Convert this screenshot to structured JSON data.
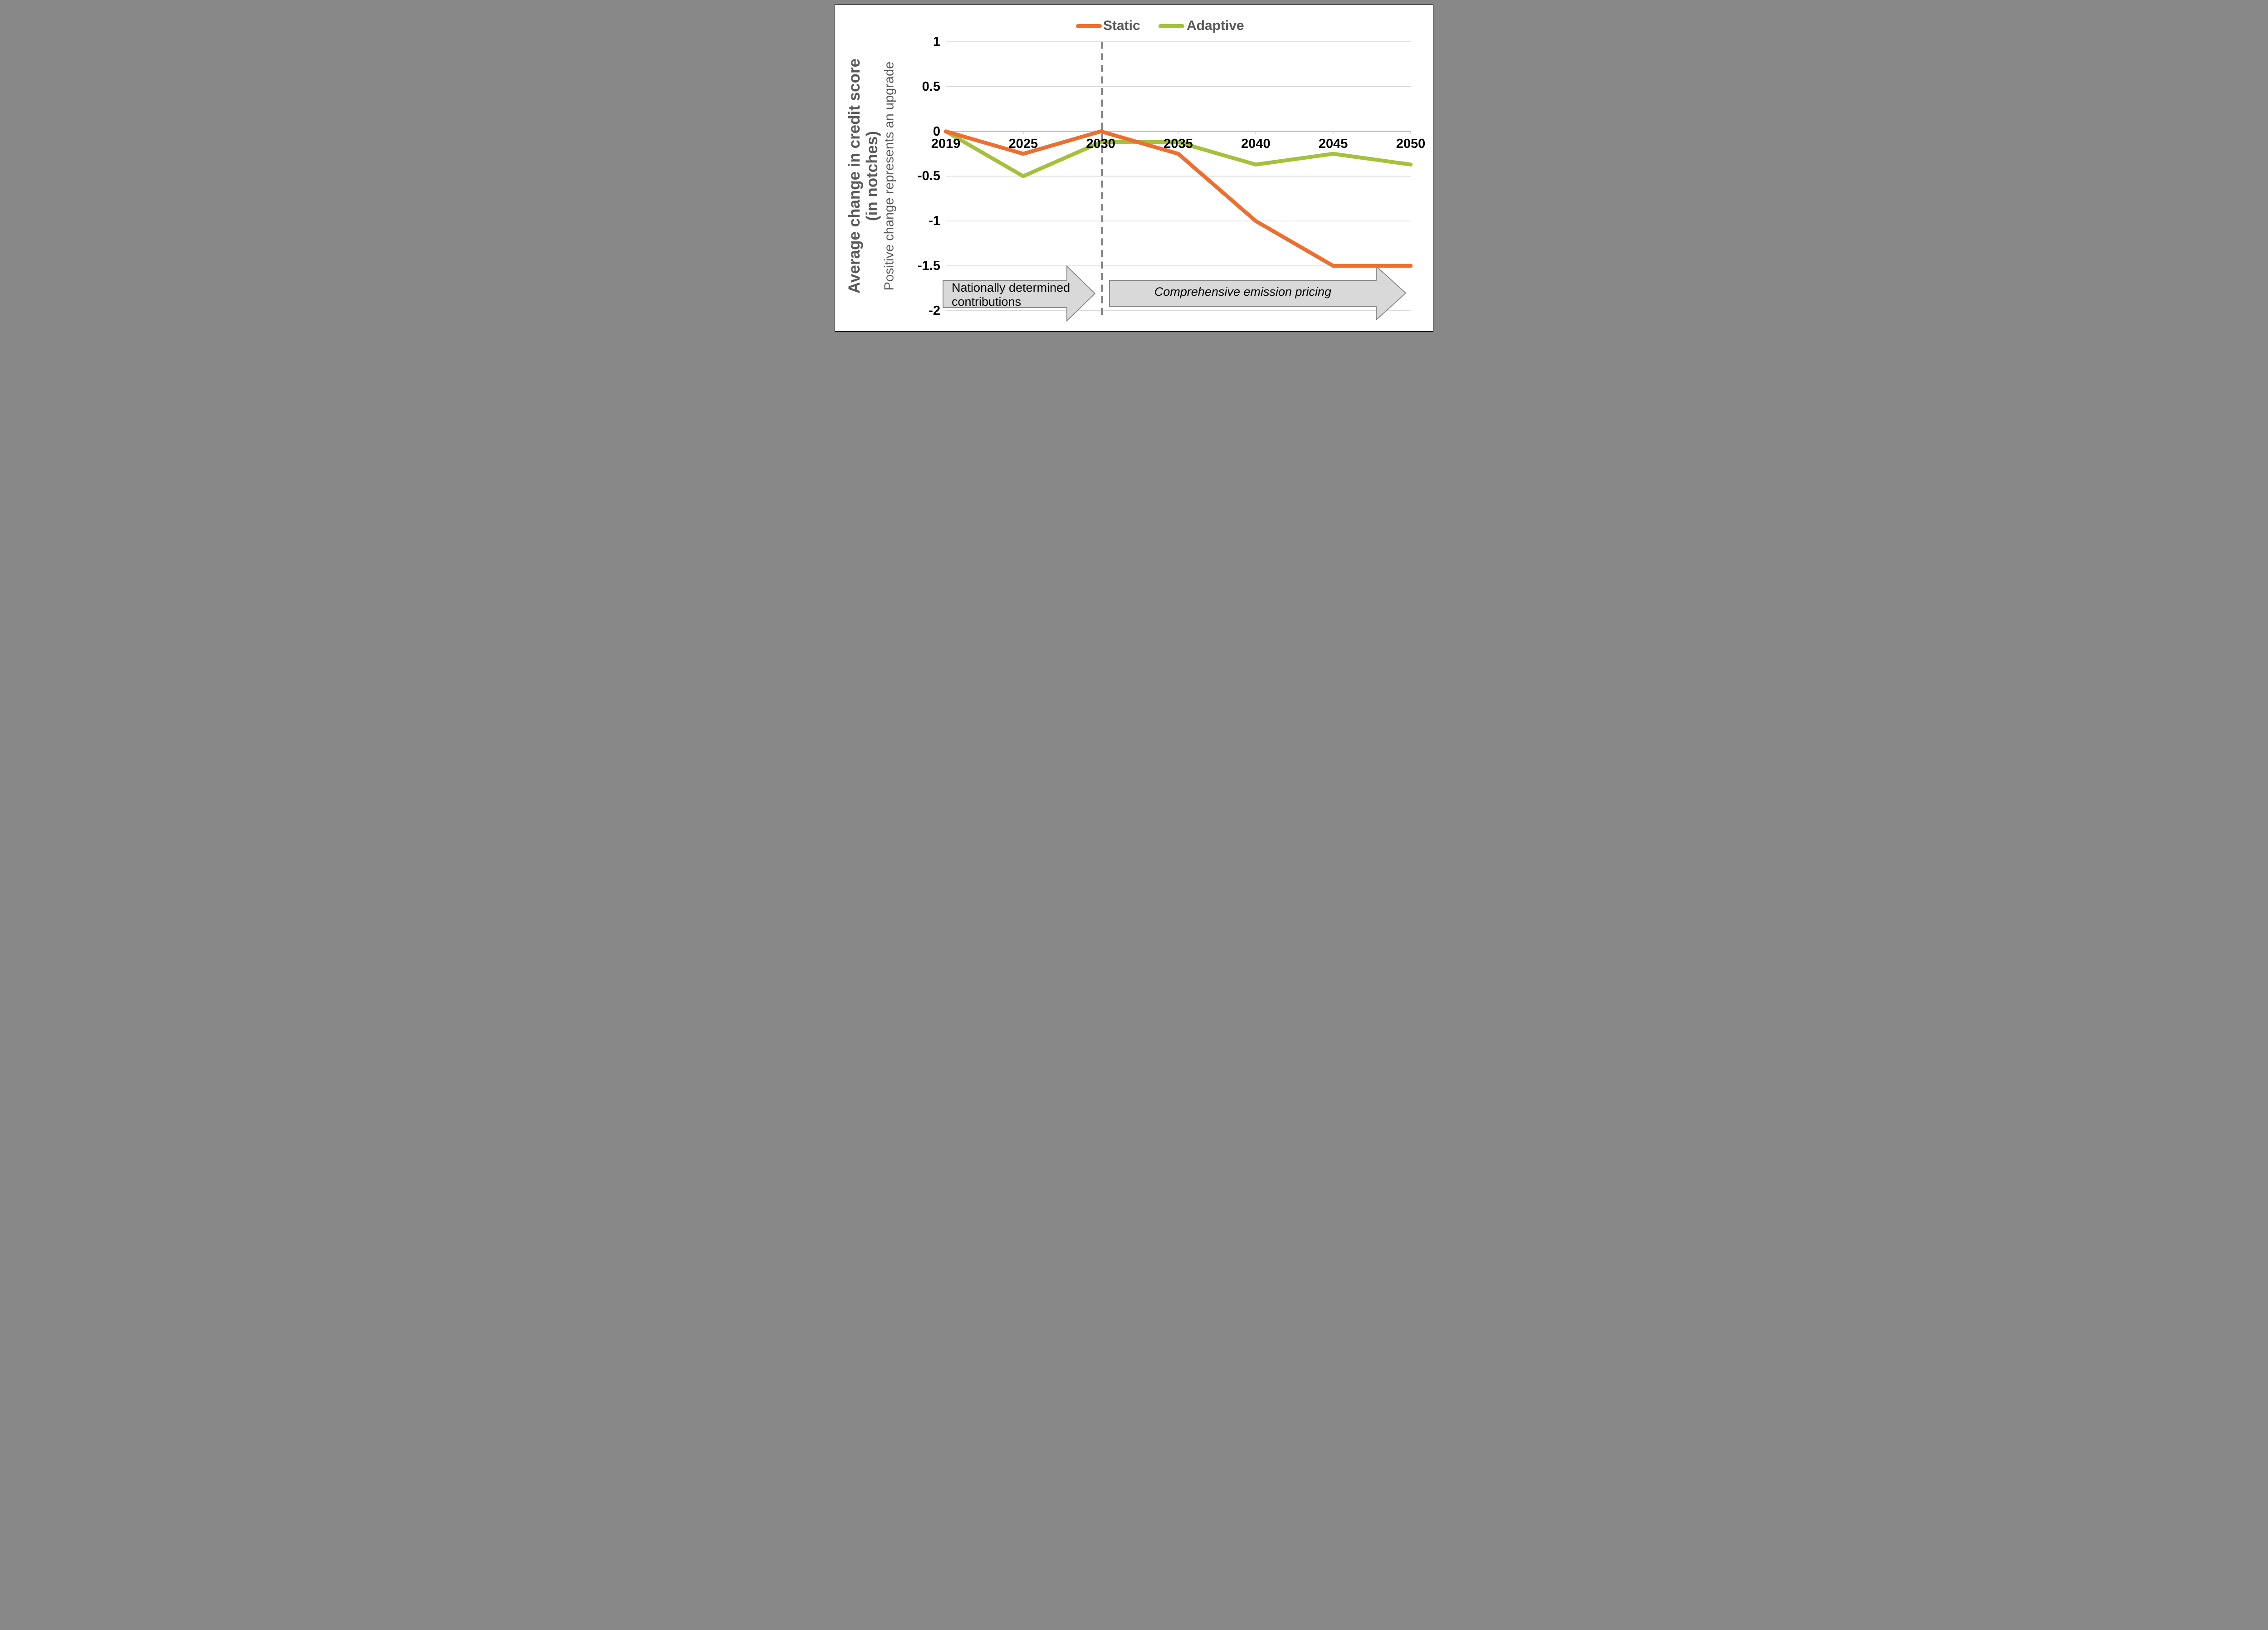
{
  "chart_data": {
    "type": "line",
    "categories": [
      "2019",
      "2025",
      "2030",
      "2035",
      "2040",
      "2045",
      "2050"
    ],
    "series": [
      {
        "name": "Static",
        "color": "#ED6F2F",
        "values": [
          0,
          -0.25,
          0,
          -0.25,
          -1,
          -1.5,
          -1.5
        ]
      },
      {
        "name": "Adaptive",
        "color": "#A5C13C",
        "values": [
          0,
          -0.5,
          -0.12,
          -0.12,
          -0.37,
          -0.25,
          -0.37
        ]
      }
    ],
    "y_ticks": [
      1,
      0.5,
      0,
      -0.5,
      -1,
      -1.5,
      -2
    ],
    "ylim": [
      -2,
      1
    ],
    "grid": "horizontal",
    "legend_position": "top-center",
    "divider_at_category": "2030",
    "y_axis_title_lines": [
      "Average change in credit score",
      "(in notches)"
    ],
    "y_axis_subtitle": "Positive change represents an upgrade",
    "annotations": [
      {
        "id": "ndc",
        "lines": [
          "Nationally determined",
          "contributions"
        ],
        "span": "2019-2030",
        "style": "normal"
      },
      {
        "id": "cep",
        "lines": [
          "Comprehensive emission pricing"
        ],
        "span": "2030-2050",
        "style": "italic"
      }
    ]
  },
  "legend": {
    "static_label": "Static",
    "adaptive_label": "Adaptive"
  },
  "titles": {
    "y_bold_line1": "Average change in credit score",
    "y_bold_line2": "(in notches)",
    "y_sub": "Positive change represents an upgrade"
  },
  "annotations": {
    "ndc_line1": "Nationally determined",
    "ndc_line2": "contributions",
    "cep_line1": "Comprehensive emission pricing"
  },
  "colors": {
    "static_series": "#ED6F2F",
    "adaptive_series": "#A5C13C",
    "axis_text": "#000000",
    "title_text": "#595959",
    "gridline": "#D9D9D9",
    "zero_axis_line": "#BFBFBF",
    "divider_line": "#7F7F7F",
    "arrow_fill": "#D9D9D9",
    "arrow_border": "#7F7F7F",
    "background": "#FFFFFF"
  }
}
